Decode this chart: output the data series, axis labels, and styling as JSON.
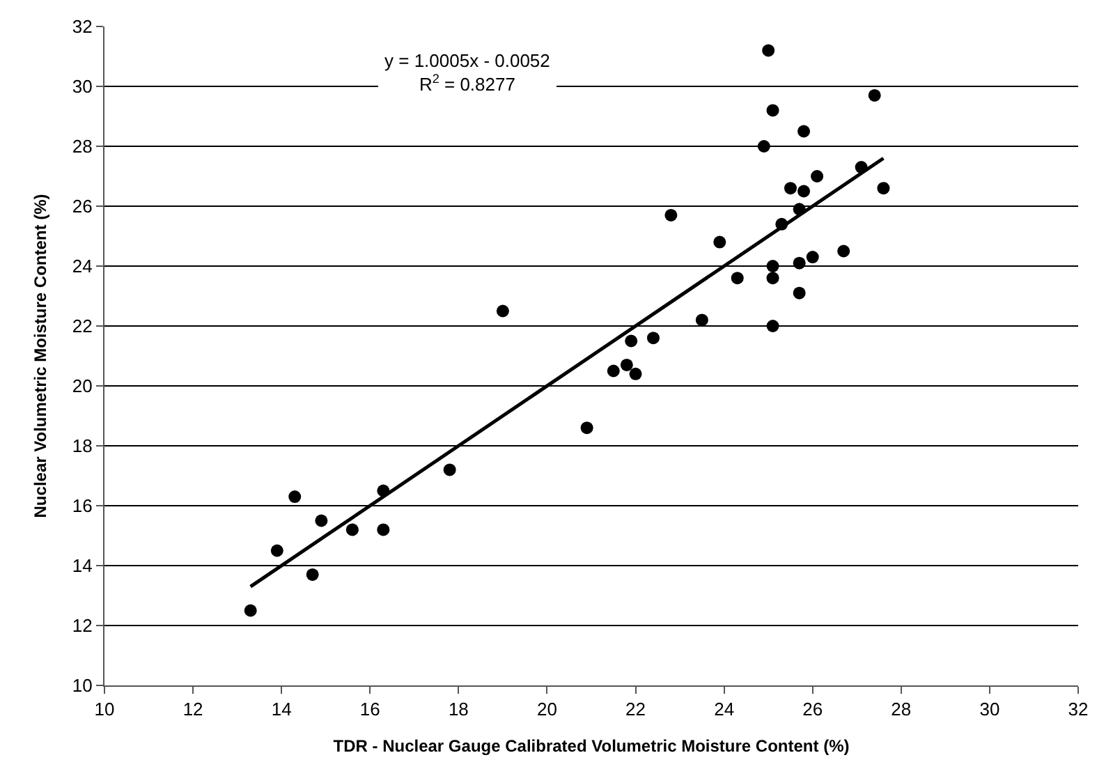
{
  "chart_data": {
    "type": "scatter",
    "xlabel": "TDR - Nuclear Gauge Calibrated Volumetric Moisture Content (%)",
    "ylabel": "Nuclear Volumetric Moisture Content (%)",
    "annotations": [
      "y = 1.0005x - 0.0052",
      "R$^{2}$ = 0.8277"
    ],
    "series": [
      {
        "color": "#000000",
        "marker": "circle",
        "x": [
          13.3,
          13.9,
          14.3,
          14.7,
          14.9,
          15.6,
          16.3,
          16.3,
          17.8,
          19.0,
          20.9,
          21.5,
          21.8,
          21.9,
          22.0,
          22.4,
          22.8,
          23.5,
          23.9,
          24.3,
          24.9,
          25.0,
          25.1,
          25.1,
          25.1,
          25.1,
          25.3,
          25.5,
          25.7,
          25.7,
          25.7,
          25.8,
          25.8,
          26.0,
          26.1,
          26.7,
          27.1,
          27.4,
          27.6
        ],
        "values": [
          12.5,
          14.5,
          16.3,
          13.7,
          15.5,
          15.2,
          16.5,
          15.2,
          17.2,
          22.5,
          18.6,
          20.5,
          20.7,
          21.5,
          20.4,
          21.6,
          25.7,
          22.2,
          24.8,
          23.6,
          28.0,
          31.2,
          29.2,
          24.0,
          23.6,
          22.0,
          25.4,
          26.6,
          25.9,
          23.1,
          24.1,
          28.5,
          26.5,
          24.3,
          27.0,
          24.5,
          27.3,
          29.7,
          26.6
        ]
      },
      {
        "type": "line",
        "color": "#000000",
        "marker": "none",
        "line_style": "solid",
        "x": [
          13.3,
          27.6
        ],
        "values": [
          13.3,
          27.6
        ]
      }
    ],
    "xlim": [
      10,
      32
    ],
    "xticks": [
      10,
      12,
      14,
      16,
      18,
      20,
      22,
      24,
      26,
      28,
      30,
      32
    ],
    "ylim": [
      10,
      32
    ],
    "yticks": [
      10,
      12,
      14,
      16,
      18,
      20,
      22,
      24,
      26,
      28,
      30,
      32
    ],
    "grid": "y",
    "legend": false
  }
}
